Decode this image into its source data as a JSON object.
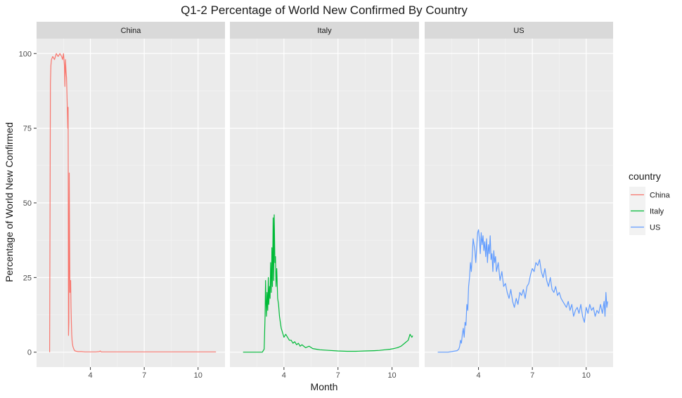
{
  "chart_data": {
    "type": "line",
    "title": "Q1-2 Percentage of World New Confirmed By Country",
    "xlabel": "Month",
    "ylabel": "Percentage of World New Confirmed",
    "xlim": [
      1.0,
      11.5
    ],
    "ylim": [
      -5,
      105
    ],
    "x_ticks": [
      4,
      7,
      10
    ],
    "y_ticks": [
      0,
      25,
      50,
      75,
      100
    ],
    "grid": true,
    "facets": [
      "China",
      "Italy",
      "US"
    ],
    "legend": {
      "title": "country",
      "position": "right",
      "entries": [
        "China",
        "Italy",
        "US"
      ]
    },
    "series": [
      {
        "name": "China",
        "color": "#F8766D",
        "x": [
          1.73,
          1.77,
          1.8,
          1.83,
          1.9,
          2.0,
          2.1,
          2.2,
          2.3,
          2.4,
          2.45,
          2.5,
          2.55,
          2.58,
          2.61,
          2.64,
          2.67,
          2.7,
          2.72,
          2.74,
          2.76,
          2.78,
          2.8,
          2.82,
          2.84,
          2.86,
          2.88,
          2.9,
          2.92,
          2.94,
          2.96,
          2.98,
          3.0,
          3.02,
          3.05,
          3.08,
          3.1,
          3.13,
          3.15,
          3.18,
          3.2,
          3.25,
          3.3,
          3.4,
          3.5,
          3.7,
          4.0,
          4.3,
          4.5,
          4.55,
          4.6,
          5.0,
          6.0,
          7.0,
          8.0,
          9.0,
          10.0,
          11.0
        ],
        "y": [
          0,
          90,
          96,
          98,
          99,
          98,
          100,
          99,
          100,
          99,
          98,
          100,
          96,
          89,
          98,
          94,
          92,
          85,
          80,
          75,
          82,
          5.6,
          10,
          60,
          38,
          20,
          22,
          24,
          15,
          10,
          6,
          4,
          3,
          2,
          1.5,
          1,
          0.7,
          0.5,
          0.4,
          0.4,
          0.3,
          0.3,
          0.2,
          0.2,
          0.2,
          0.1,
          0.1,
          0.1,
          0.2,
          0.4,
          0.1,
          0.1,
          0.1,
          0.1,
          0.1,
          0.1,
          0.1,
          0.1
        ]
      },
      {
        "name": "Italy",
        "color": "#00BA38",
        "x": [
          1.73,
          2.0,
          2.5,
          2.8,
          2.9,
          2.92,
          2.95,
          2.98,
          3.0,
          3.03,
          3.06,
          3.1,
          3.13,
          3.16,
          3.2,
          3.23,
          3.26,
          3.3,
          3.33,
          3.36,
          3.4,
          3.43,
          3.46,
          3.5,
          3.53,
          3.56,
          3.6,
          3.65,
          3.7,
          3.75,
          3.8,
          3.85,
          3.9,
          3.95,
          4.0,
          4.1,
          4.2,
          4.3,
          4.4,
          4.5,
          4.6,
          4.7,
          4.8,
          4.9,
          5.0,
          5.2,
          5.4,
          5.6,
          5.8,
          6.0,
          6.5,
          7.0,
          7.5,
          8.0,
          8.5,
          9.0,
          9.3,
          9.6,
          9.9,
          10.1,
          10.3,
          10.5,
          10.7,
          10.9,
          11.0,
          11.1,
          11.15
        ],
        "y": [
          0,
          0,
          0,
          0,
          1,
          5,
          12,
          24,
          18,
          12,
          20,
          14,
          25,
          16,
          22,
          18,
          30,
          20,
          35,
          22,
          45,
          24,
          46,
          30,
          32,
          22,
          28,
          18,
          16,
          12,
          10,
          8,
          7,
          6,
          5,
          6,
          5,
          4,
          4,
          3,
          3.5,
          2.5,
          3,
          2,
          2.5,
          1.5,
          2,
          1.2,
          1,
          0.8,
          0.6,
          0.4,
          0.3,
          0.3,
          0.4,
          0.5,
          0.6,
          0.8,
          1,
          1.2,
          1.5,
          2,
          3,
          4,
          6,
          5,
          5.5
        ]
      },
      {
        "name": "US",
        "color": "#619CFF",
        "x": [
          1.73,
          2.0,
          2.3,
          2.6,
          2.8,
          2.9,
          2.95,
          3.0,
          3.05,
          3.1,
          3.15,
          3.2,
          3.25,
          3.3,
          3.35,
          3.4,
          3.45,
          3.5,
          3.55,
          3.6,
          3.65,
          3.7,
          3.75,
          3.8,
          3.85,
          3.9,
          3.95,
          4.0,
          4.05,
          4.1,
          4.15,
          4.2,
          4.25,
          4.3,
          4.35,
          4.4,
          4.45,
          4.5,
          4.55,
          4.6,
          4.65,
          4.7,
          4.75,
          4.8,
          4.85,
          4.9,
          4.95,
          5.0,
          5.1,
          5.2,
          5.3,
          5.4,
          5.5,
          5.6,
          5.7,
          5.8,
          5.9,
          6.0,
          6.1,
          6.2,
          6.3,
          6.4,
          6.5,
          6.6,
          6.7,
          6.8,
          6.9,
          7.0,
          7.1,
          7.2,
          7.3,
          7.4,
          7.5,
          7.6,
          7.7,
          7.8,
          7.9,
          8.0,
          8.1,
          8.2,
          8.3,
          8.4,
          8.5,
          8.6,
          8.7,
          8.8,
          8.9,
          9.0,
          9.1,
          9.2,
          9.3,
          9.4,
          9.5,
          9.6,
          9.7,
          9.8,
          9.9,
          10.0,
          10.1,
          10.2,
          10.3,
          10.4,
          10.5,
          10.6,
          10.7,
          10.8,
          10.9,
          11.0,
          11.05,
          11.1,
          11.15,
          11.2
        ],
        "y": [
          0,
          0,
          0,
          0.3,
          0.5,
          1,
          2,
          4,
          3,
          6,
          8,
          5,
          10,
          9,
          16,
          14,
          22,
          25,
          30,
          27,
          32,
          38,
          36,
          34,
          30,
          35,
          40,
          41,
          38,
          33,
          40,
          36,
          39,
          34,
          37,
          32,
          38,
          30,
          36,
          33,
          39,
          31,
          33,
          27,
          34,
          30,
          32,
          27,
          30,
          24,
          27,
          22,
          23,
          20,
          18,
          21,
          17,
          15,
          18,
          16,
          20,
          19,
          21,
          18,
          22,
          23,
          26,
          28,
          27,
          30,
          29,
          31,
          27,
          25,
          28,
          24,
          22,
          25,
          21,
          20,
          22,
          19,
          20,
          18,
          17,
          16,
          15,
          17,
          14,
          16,
          12,
          14,
          15,
          13,
          16,
          12,
          10,
          15,
          13,
          16,
          14,
          15,
          12,
          14,
          13,
          16,
          13,
          17,
          12,
          20,
          15,
          17
        ]
      }
    ]
  }
}
